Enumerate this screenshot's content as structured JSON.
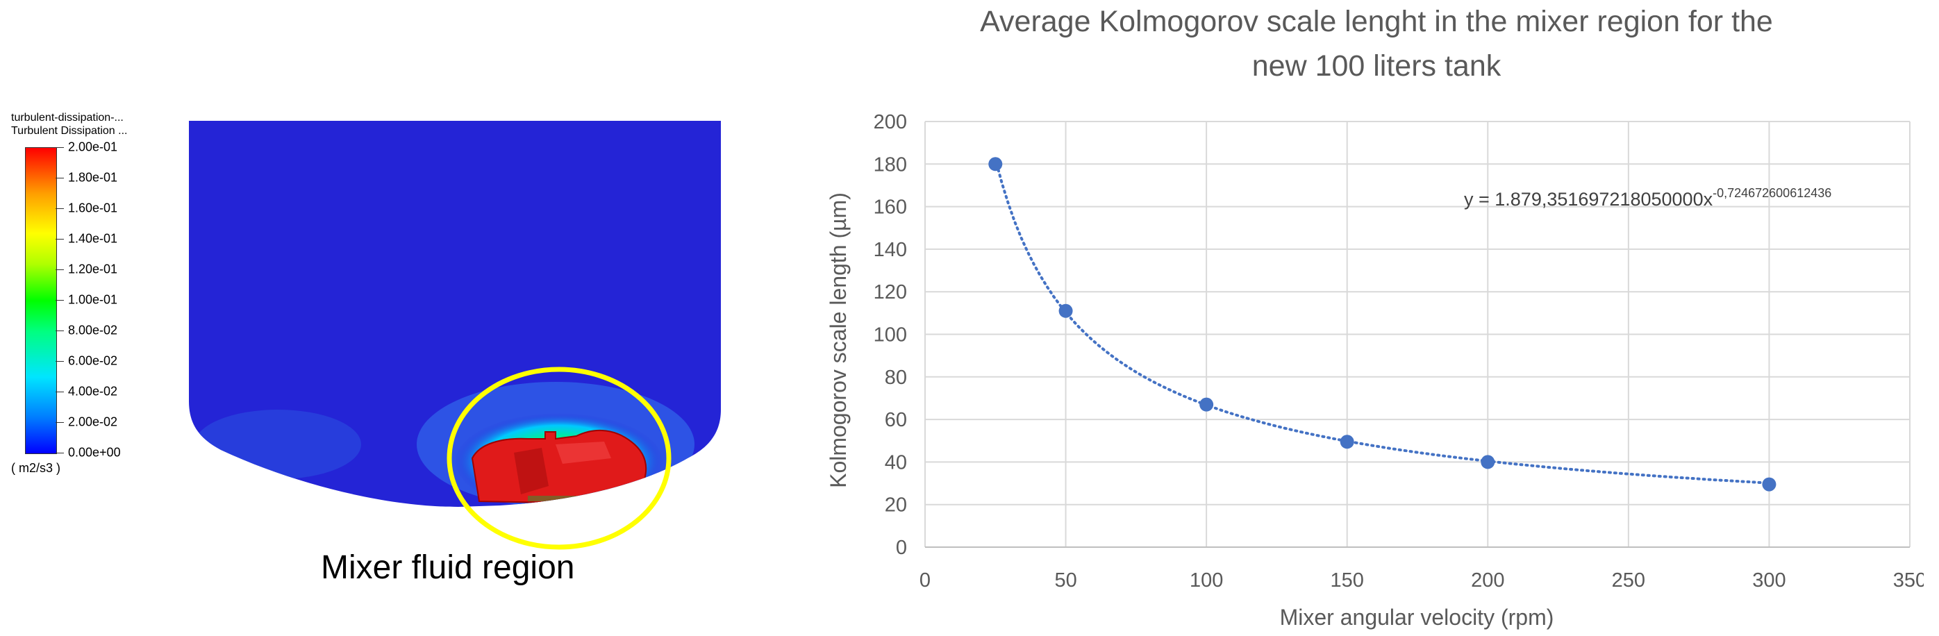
{
  "cfd": {
    "legend_title_1": "turbulent-dissipation-...",
    "legend_title_2": "Turbulent Dissipation ...",
    "legend_ticks": [
      "2.00e-01",
      "1.80e-01",
      "1.60e-01",
      "1.40e-01",
      "1.20e-01",
      "1.00e-01",
      "8.00e-02",
      "6.00e-02",
      "4.00e-02",
      "2.00e-02",
      "0.00e+00"
    ],
    "legend_unit": "( m2/s3 )",
    "region_caption": "Mixer fluid region",
    "colors": {
      "fluid": "#2424d6",
      "mixer": "#e01a1a",
      "highlight": "#ffff00"
    }
  },
  "chart_data": {
    "type": "scatter",
    "title_line1": "Average Kolmogorov scale lenght in the mixer region for the",
    "title_line2": "new 100 liters tank",
    "xlabel": "Mixer angular velocity (rpm)",
    "ylabel": "Kolmogorov scale length (µm)",
    "xlim": [
      0,
      350
    ],
    "ylim": [
      0,
      200
    ],
    "x_ticks": [
      0,
      50,
      100,
      150,
      200,
      250,
      300,
      350
    ],
    "y_ticks": [
      0,
      20,
      40,
      60,
      80,
      100,
      120,
      140,
      160,
      180,
      200
    ],
    "grid": true,
    "series": [
      {
        "x": [
          25,
          50,
          100,
          150,
          200,
          300
        ],
        "y": [
          180,
          111,
          67,
          49.5,
          40,
          29.5
        ]
      }
    ],
    "trendline": {
      "type": "power",
      "coefficient": 1879.35169721805,
      "exponent": -0.724672600612436,
      "style": "dotted"
    },
    "equation_text": "y = 1.879,351697218050000x",
    "equation_exponent": "-0,724672600612436",
    "colors": {
      "marker": "#4472c4",
      "grid": "#d9d9d9",
      "text": "#595959"
    }
  }
}
